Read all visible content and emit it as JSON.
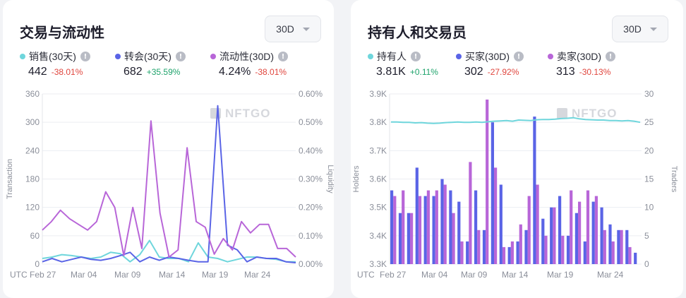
{
  "left": {
    "title": "交易与流动性",
    "period": "30D",
    "legend": [
      {
        "label": "销售(30天)",
        "value": "442",
        "change": "-38.01%",
        "color": "#6fd6dc",
        "positive": false
      },
      {
        "label": "转会(30天)",
        "value": "682",
        "change": "+35.59%",
        "color": "#5a64e6",
        "positive": true
      },
      {
        "label": "流动性(30D)",
        "value": "4.24%",
        "change": "-38.01%",
        "color": "#b866d8",
        "positive": false
      }
    ]
  },
  "right": {
    "title": "持有人和交易员",
    "period": "30D",
    "legend": [
      {
        "label": "持有人",
        "value": "3.81K",
        "change": "+0.11%",
        "color": "#6fd6dc",
        "positive": true
      },
      {
        "label": "买家(30D)",
        "value": "302",
        "change": "-27.92%",
        "color": "#5a64e6",
        "positive": false
      },
      {
        "label": "卖家(30D)",
        "value": "313",
        "change": "-30.13%",
        "color": "#b866d8",
        "positive": false
      }
    ]
  },
  "watermark": "NFTGO",
  "chart_data": [
    {
      "type": "line",
      "x_ticks": [
        "UTC Feb 27",
        "Mar 04",
        "Mar 09",
        "Mar 14",
        "Mar 19",
        "Mar 24"
      ],
      "ylabel": "Transaction",
      "y2label": "Liquidity",
      "ylim": [
        0,
        360
      ],
      "y_ticks": [
        "360",
        "300",
        "240",
        "180",
        "120",
        "60",
        "0"
      ],
      "y2lim": [
        0,
        0.6
      ],
      "y2_ticks": [
        "0.60%",
        "0.50%",
        "0.40%",
        "0.30%",
        "0.20%",
        "0.10%",
        "0.00%"
      ],
      "grid": true,
      "series": [
        {
          "name": "销售(30天)",
          "axis": "left",
          "color": "#6fd6dc",
          "values": [
            12,
            15,
            20,
            18,
            15,
            12,
            15,
            25,
            22,
            5,
            20,
            50,
            15,
            12,
            12,
            5,
            45,
            15,
            12,
            5,
            10,
            15,
            15,
            12,
            10,
            5,
            5
          ]
        },
        {
          "name": "转会(30天)",
          "axis": "left",
          "color": "#5a64e6",
          "values": [
            5,
            12,
            5,
            10,
            15,
            10,
            8,
            12,
            18,
            25,
            5,
            15,
            8,
            15,
            12,
            8,
            5,
            5,
            335,
            40,
            30,
            5,
            15,
            12,
            12,
            5,
            3
          ]
        },
        {
          "name": "流动性(30D)",
          "axis": "right",
          "color": "#b866d8",
          "values": [
            0.12,
            0.15,
            0.19,
            0.16,
            0.14,
            0.12,
            0.15,
            0.255,
            0.2,
            0.03,
            0.2,
            0.055,
            0.505,
            0.18,
            0.025,
            0.05,
            0.41,
            0.15,
            0.13,
            0.035,
            0.09,
            0.05,
            0.15,
            0.11,
            0.14,
            0.14,
            0.055,
            0.055,
            0.025
          ]
        }
      ]
    },
    {
      "type": "bar",
      "x_ticks": [
        "UTC",
        "Feb 27",
        "Mar 04",
        "Mar 09",
        "Mar 14",
        "Mar 19",
        "Mar 24"
      ],
      "ylabel": "Holders",
      "y2label": "Traders",
      "ylim": [
        3300,
        3900
      ],
      "y_ticks": [
        "3.9K",
        "3.8K",
        "3.7K",
        "3.6K",
        "3.5K",
        "3.4K",
        "3.3K"
      ],
      "y2lim": [
        0,
        30
      ],
      "y2_ticks": [
        "30",
        "25",
        "20",
        "15",
        "10",
        "5",
        "0"
      ],
      "grid": true,
      "series": [
        {
          "name": "持有人",
          "axis": "left",
          "type": "line",
          "color": "#6fd6dc",
          "values": [
            3801,
            3801,
            3800,
            3800,
            3798,
            3799,
            3797,
            3796,
            3797,
            3799,
            3800,
            3801,
            3800,
            3800,
            3801,
            3800,
            3802,
            3804,
            3805,
            3806,
            3804,
            3808,
            3807,
            3806,
            3809,
            3810,
            3810,
            3811,
            3813,
            3814,
            3816,
            3812,
            3810,
            3809,
            3808,
            3808,
            3806,
            3806,
            3805,
            3806,
            3804,
            3800
          ]
        },
        {
          "name": "买家(30D)",
          "axis": "right",
          "color": "#5a64e6",
          "values": [
            13,
            9,
            9,
            17,
            12,
            12,
            15,
            13,
            11,
            4,
            13,
            6,
            25,
            14,
            3,
            4,
            6,
            26,
            8,
            10,
            12,
            5,
            9,
            4,
            11,
            10,
            7,
            6,
            6,
            2
          ]
        },
        {
          "name": "卖家(30D)",
          "axis": "right",
          "color": "#b866d8",
          "values": [
            12,
            13,
            9,
            12,
            13,
            13,
            14,
            9,
            4,
            18,
            6,
            29,
            17,
            3,
            4,
            7,
            12,
            14,
            5,
            10,
            5,
            13,
            11,
            13,
            12,
            6,
            4,
            6,
            3
          ]
        }
      ]
    }
  ]
}
